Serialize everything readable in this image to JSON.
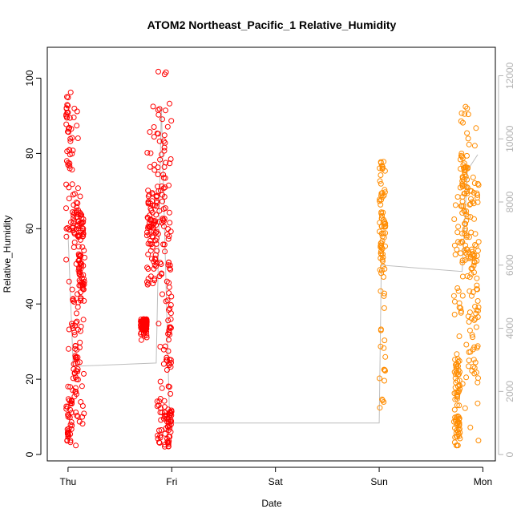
{
  "chart_data": {
    "type": "scatter",
    "title": "ATOM2 Northeast_Pacific_1 Relative_Humidity",
    "xlabel": "Date",
    "ylabel": "Relative_Humidity",
    "x_ticks": [
      "Thu",
      "Fri",
      "Sat",
      "Sun",
      "Mon"
    ],
    "xlim_days": [
      -0.2,
      4.12
    ],
    "ylim": [
      -1.7,
      108.2
    ],
    "y_ticks": [
      0,
      20,
      40,
      60,
      80,
      100
    ],
    "y2_ticks": [
      0,
      2000,
      4000,
      6000,
      8000,
      10000,
      12000
    ],
    "y2lim": [
      -200,
      12900
    ],
    "grid": false,
    "colors": {
      "series1": "#ff0000",
      "series2": "#ff8c00",
      "secondary_line": "#bebebe",
      "secondary_axis": "#b3b3b3",
      "axis": "#000000"
    },
    "series": [
      {
        "clusters": [
          {
            "x_range": [
              -0.02,
              0.04
            ],
            "y_range": [
              3,
              97
            ],
            "bands": [
              [
                75,
                95
              ],
              [
                3,
                15
              ]
            ]
          },
          {
            "x_range": [
              0.04,
              0.1
            ],
            "y_range": [
              2,
              96
            ],
            "bands": [
              [
                55,
                70
              ],
              [
                15,
                45
              ]
            ]
          },
          {
            "x_range": [
              0.1,
              0.16
            ],
            "y_range": [
              8,
              70
            ],
            "bands": [
              [
                40,
                65
              ]
            ]
          },
          {
            "x_range": [
              0.7,
              0.76
            ],
            "y_range": [
              30,
              36
            ],
            "bands": [
              [
                33,
                36
              ]
            ]
          },
          {
            "x_range": [
              0.76,
              0.86
            ],
            "y_range": [
              43,
              94
            ],
            "bands": [
              [
                45,
                70
              ]
            ]
          },
          {
            "x_range": [
              0.86,
              0.95
            ],
            "y_range": [
              2,
              104
            ],
            "bands": [
              [
                55,
                90
              ],
              [
                2,
                15
              ]
            ]
          },
          {
            "x_range": [
              0.95,
              1.0
            ],
            "y_range": [
              2,
              100
            ],
            "bands": [
              [
                20,
                65
              ],
              [
                2,
                12
              ]
            ]
          }
        ]
      },
      {
        "clusters": [
          {
            "x_range": [
              3.0,
              3.06
            ],
            "y_range": [
              7,
              79
            ],
            "bands": [
              [
                48,
                78
              ]
            ]
          },
          {
            "x_range": [
              3.72,
              3.78
            ],
            "y_range": [
              2,
              70
            ],
            "bands": [
              [
                2,
                25
              ]
            ]
          },
          {
            "x_range": [
              3.78,
              3.86
            ],
            "y_range": [
              10,
              94
            ],
            "bands": [
              [
                50,
                80
              ]
            ]
          },
          {
            "x_range": [
              3.86,
              3.96
            ],
            "y_range": [
              3,
              87
            ],
            "bands": [
              [
                20,
                75
              ]
            ]
          }
        ]
      }
    ],
    "secondary_line": [
      {
        "x": 0.0,
        "y2": 7000
      },
      {
        "x": 0.05,
        "y2": 2800
      },
      {
        "x": 0.1,
        "y2": 2800
      },
      {
        "x": 0.85,
        "y2": 2900
      },
      {
        "x": 0.9,
        "y2": 11000
      },
      {
        "x": 0.98,
        "y2": 1000
      },
      {
        "x": 3.0,
        "y2": 1000
      },
      {
        "x": 3.02,
        "y2": 6000
      },
      {
        "x": 3.8,
        "y2": 5800
      },
      {
        "x": 3.85,
        "y2": 9000
      },
      {
        "x": 3.95,
        "y2": 9500
      }
    ]
  }
}
